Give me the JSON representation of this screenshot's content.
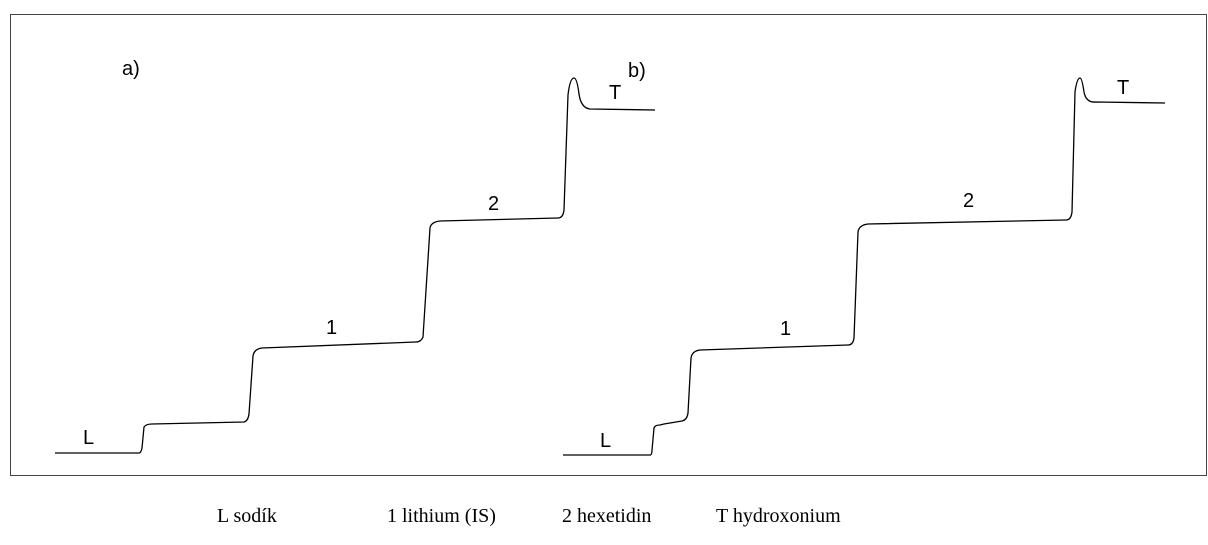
{
  "panels": [
    {
      "label": "a)",
      "zones": [
        "L",
        "1",
        "2",
        "T"
      ]
    },
    {
      "label": "b)",
      "zones": [
        "L",
        "1",
        "2",
        "T"
      ]
    }
  ],
  "legend": [
    "L sodík",
    "1 lithium (IS)",
    "2 hexetidin",
    "T hydroxonium"
  ]
}
